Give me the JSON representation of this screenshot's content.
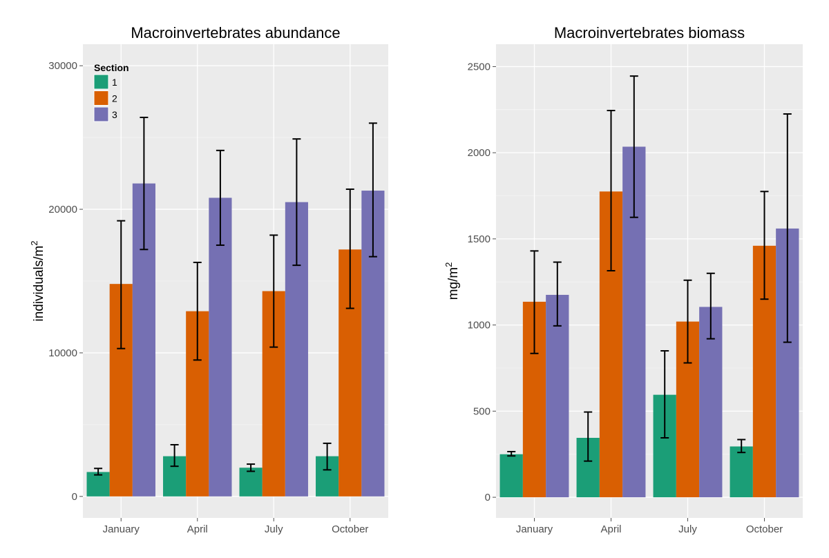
{
  "legend": {
    "title": "Section",
    "items": [
      {
        "label": "1",
        "color": "#1b9e77"
      },
      {
        "label": "2",
        "color": "#d95f02"
      },
      {
        "label": "3",
        "color": "#7570b3"
      }
    ]
  },
  "chart_data": [
    {
      "type": "bar",
      "title": "Macroinvertebrates abundance",
      "xlabel": "",
      "ylabel": "individuals/m",
      "ylabel_superscript": "2",
      "categories": [
        "January",
        "April",
        "July",
        "October"
      ],
      "ylim": [
        -1500,
        31500
      ],
      "yticks": [
        0,
        10000,
        20000,
        30000
      ],
      "grid": true,
      "legend_position": "top-left",
      "series": [
        {
          "name": "1",
          "color": "#1b9e77",
          "values": [
            1700,
            2800,
            2000,
            2800
          ],
          "err_low": [
            1500,
            2100,
            1750,
            1850
          ],
          "err_high": [
            1950,
            3600,
            2250,
            3700
          ]
        },
        {
          "name": "2",
          "color": "#d95f02",
          "values": [
            14800,
            12900,
            14300,
            17200
          ],
          "err_low": [
            10300,
            9500,
            10400,
            13100
          ],
          "err_high": [
            19200,
            16300,
            18200,
            21400
          ]
        },
        {
          "name": "3",
          "color": "#7570b3",
          "values": [
            21800,
            20800,
            20500,
            21300
          ],
          "err_low": [
            17200,
            17500,
            16100,
            16700
          ],
          "err_high": [
            26400,
            24100,
            24900,
            26000
          ]
        }
      ]
    },
    {
      "type": "bar",
      "title": "Macroinvertebrates biomass",
      "xlabel": "",
      "ylabel": "mg/m",
      "ylabel_superscript": "2",
      "categories": [
        "January",
        "April",
        "July",
        "October"
      ],
      "ylim": [
        -120,
        2630
      ],
      "yticks": [
        0,
        500,
        1000,
        1500,
        2000,
        2500
      ],
      "grid": true,
      "legend_position": "none",
      "series": [
        {
          "name": "1",
          "color": "#1b9e77",
          "values": [
            250,
            345,
            595,
            295
          ],
          "err_low": [
            240,
            210,
            345,
            260
          ],
          "err_high": [
            265,
            495,
            850,
            335
          ]
        },
        {
          "name": "2",
          "color": "#d95f02",
          "values": [
            1135,
            1775,
            1020,
            1460
          ],
          "err_low": [
            835,
            1315,
            780,
            1150
          ],
          "err_high": [
            1430,
            2245,
            1260,
            1775
          ]
        },
        {
          "name": "3",
          "color": "#7570b3",
          "values": [
            1175,
            2035,
            1105,
            1560
          ],
          "err_low": [
            995,
            1625,
            920,
            900
          ],
          "err_high": [
            1365,
            2445,
            1300,
            2225
          ]
        }
      ]
    }
  ]
}
